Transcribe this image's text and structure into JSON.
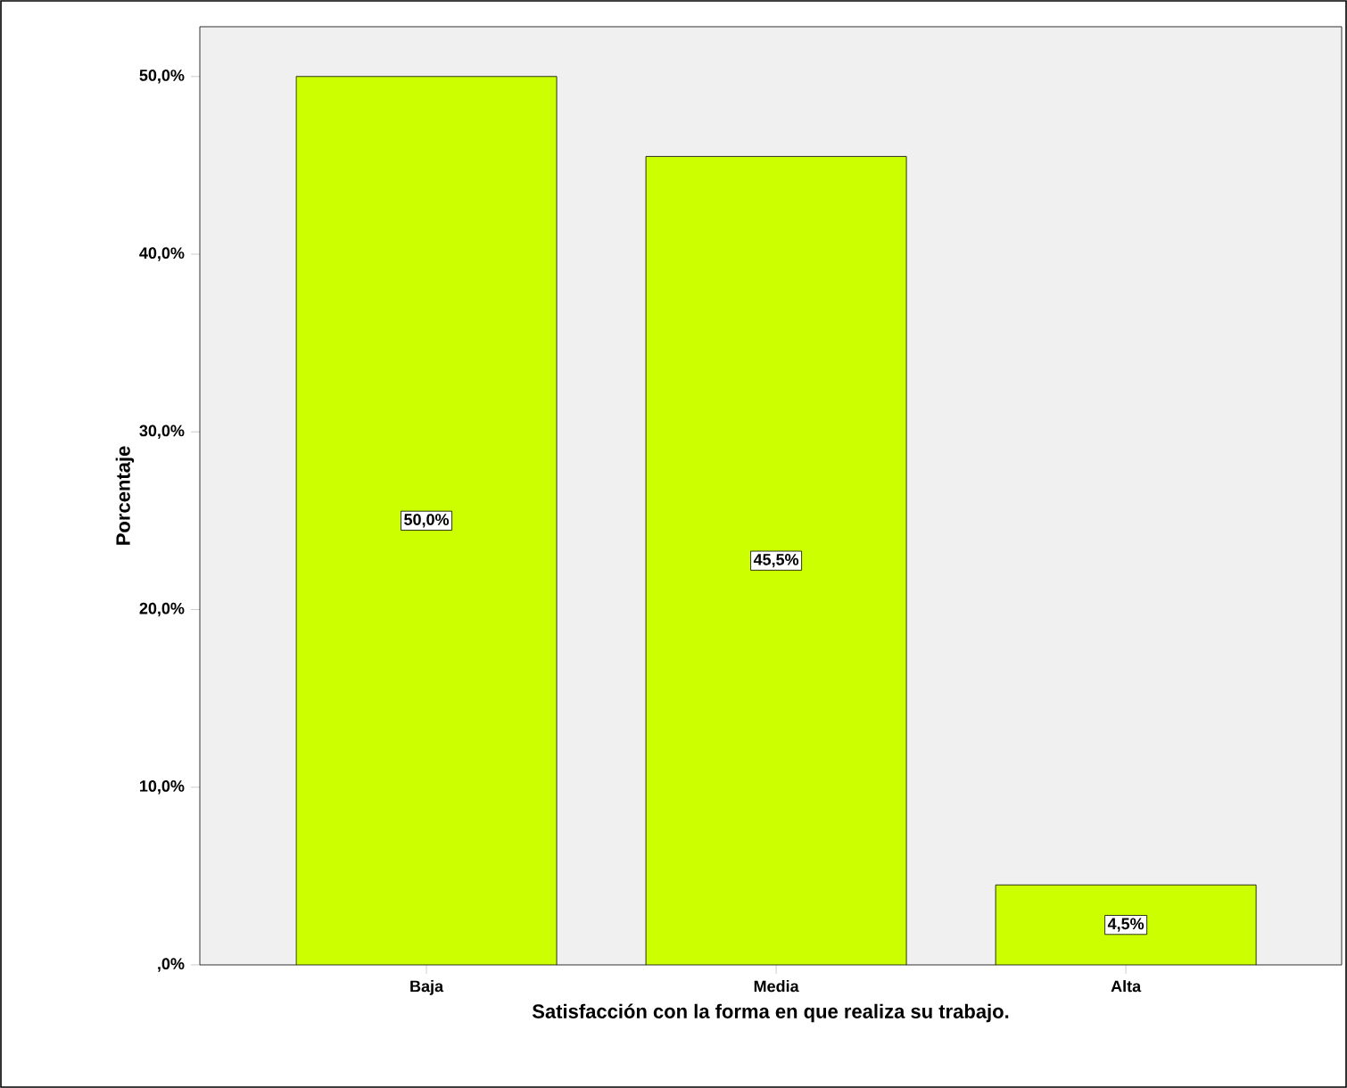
{
  "chart_data": {
    "type": "bar",
    "xlabel": "Satisfacción con la forma en que realiza su trabajo.",
    "ylabel": "Porcentaje",
    "categories": [
      "Baja",
      "Media",
      "Alta"
    ],
    "values": [
      50.0,
      45.5,
      4.5
    ],
    "value_labels": [
      "50,0%",
      "45,5%",
      "4,5%"
    ],
    "color": "#ccff00",
    "ylim": [
      0,
      52.8
    ],
    "yticks": [
      {
        "value": 0,
        "label": ",0%"
      },
      {
        "value": 10,
        "label": "10,0%"
      },
      {
        "value": 20,
        "label": "20,0%"
      },
      {
        "value": 30,
        "label": "30,0%"
      },
      {
        "value": 40,
        "label": "40,0%"
      },
      {
        "value": 50,
        "label": "50,0%"
      }
    ],
    "grid": false
  }
}
